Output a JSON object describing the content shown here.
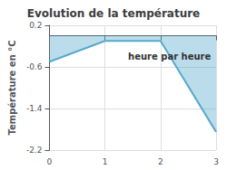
{
  "chart_data": {
    "type": "line",
    "title": "Evolution de la température",
    "xlabel": "heure par heure",
    "ylabel": "Température en °C",
    "x": [
      0,
      1,
      2,
      3
    ],
    "values": [
      -0.5,
      -0.1,
      -0.1,
      -1.85
    ],
    "color": "#55aacc",
    "xlim": [
      0,
      3
    ],
    "ylim": [
      -2.2,
      0.2
    ],
    "xticks": [
      0,
      1,
      2,
      3
    ],
    "yticks": [
      0.2,
      -0.6,
      -1.4,
      -2.2
    ],
    "grid": true
  }
}
